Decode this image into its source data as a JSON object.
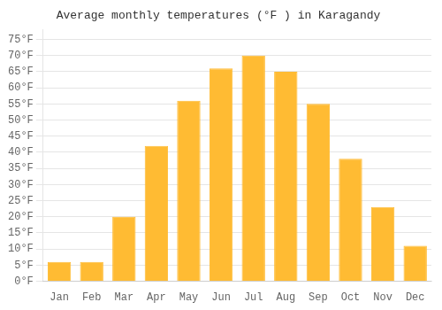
{
  "chart_data": {
    "type": "bar",
    "title": "Average monthly temperatures (°F ) in Karagandy",
    "categories": [
      "Jan",
      "Feb",
      "Mar",
      "Apr",
      "May",
      "Jun",
      "Jul",
      "Aug",
      "Sep",
      "Oct",
      "Nov",
      "Dec"
    ],
    "values": [
      6,
      6,
      20,
      42,
      56,
      66,
      70,
      65,
      55,
      38,
      23,
      11
    ],
    "color": "#FFBB33",
    "ylim": [
      0,
      78
    ],
    "yticks": [
      {
        "value": 0,
        "label": "0°F"
      },
      {
        "value": 5,
        "label": "5°F"
      },
      {
        "value": 10,
        "label": "10°F"
      },
      {
        "value": 15,
        "label": "15°F"
      },
      {
        "value": 20,
        "label": "20°F"
      },
      {
        "value": 25,
        "label": "25°F"
      },
      {
        "value": 30,
        "label": "30°F"
      },
      {
        "value": 35,
        "label": "35°F"
      },
      {
        "value": 40,
        "label": "40°F"
      },
      {
        "value": 45,
        "label": "45°F"
      },
      {
        "value": 50,
        "label": "50°F"
      },
      {
        "value": 55,
        "label": "55°F"
      },
      {
        "value": 60,
        "label": "60°F"
      },
      {
        "value": 65,
        "label": "65°F"
      },
      {
        "value": 70,
        "label": "70°F"
      },
      {
        "value": 75,
        "label": "75°F"
      }
    ],
    "grid": true
  }
}
